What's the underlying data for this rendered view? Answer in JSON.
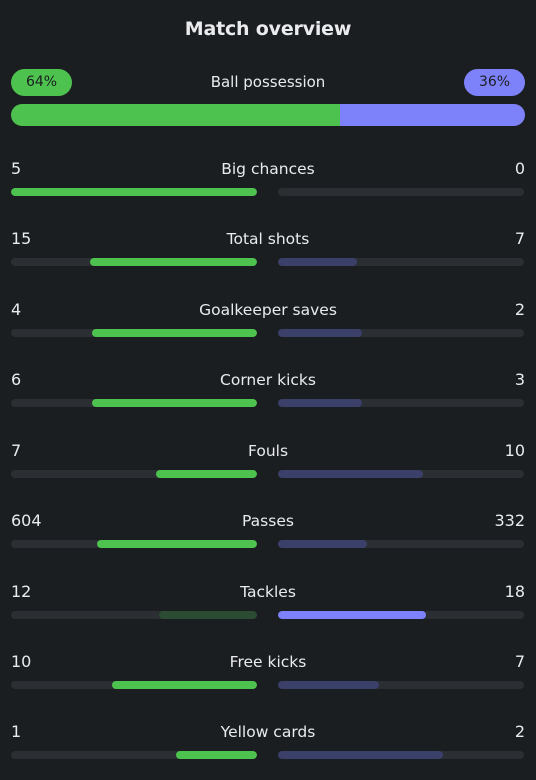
{
  "header": {
    "title": "Match overview"
  },
  "possession": {
    "label": "Ball possession",
    "home": "64%",
    "away": "36%",
    "home_fraction": 0.64
  },
  "colors": {
    "home_strong": "#4ec24f",
    "home_weak": "#2c4b33",
    "away_strong": "#7d82fb",
    "away_weak": "#3b406a",
    "track": "#2b2e32"
  },
  "stats": [
    {
      "label": "Big chances",
      "home": "5",
      "away": "0",
      "home_ratio": 1.0,
      "away_ratio": 0.0,
      "winner": "home"
    },
    {
      "label": "Total shots",
      "home": "15",
      "away": "7",
      "home_ratio": 0.68,
      "away_ratio": 0.32,
      "winner": "home"
    },
    {
      "label": "Goalkeeper saves",
      "home": "4",
      "away": "2",
      "home_ratio": 0.67,
      "away_ratio": 0.34,
      "winner": "home"
    },
    {
      "label": "Corner kicks",
      "home": "6",
      "away": "3",
      "home_ratio": 0.67,
      "away_ratio": 0.34,
      "winner": "home"
    },
    {
      "label": "Fouls",
      "home": "7",
      "away": "10",
      "home_ratio": 0.41,
      "away_ratio": 0.59,
      "winner": "home"
    },
    {
      "label": "Passes",
      "home": "604",
      "away": "332",
      "home_ratio": 0.65,
      "away_ratio": 0.36,
      "winner": "home"
    },
    {
      "label": "Tackles",
      "home": "12",
      "away": "18",
      "home_ratio": 0.4,
      "away_ratio": 0.6,
      "winner": "away"
    },
    {
      "label": "Free kicks",
      "home": "10",
      "away": "7",
      "home_ratio": 0.59,
      "away_ratio": 0.41,
      "winner": "home"
    },
    {
      "label": "Yellow cards",
      "home": "1",
      "away": "2",
      "home_ratio": 0.33,
      "away_ratio": 0.67,
      "winner": "home"
    }
  ]
}
